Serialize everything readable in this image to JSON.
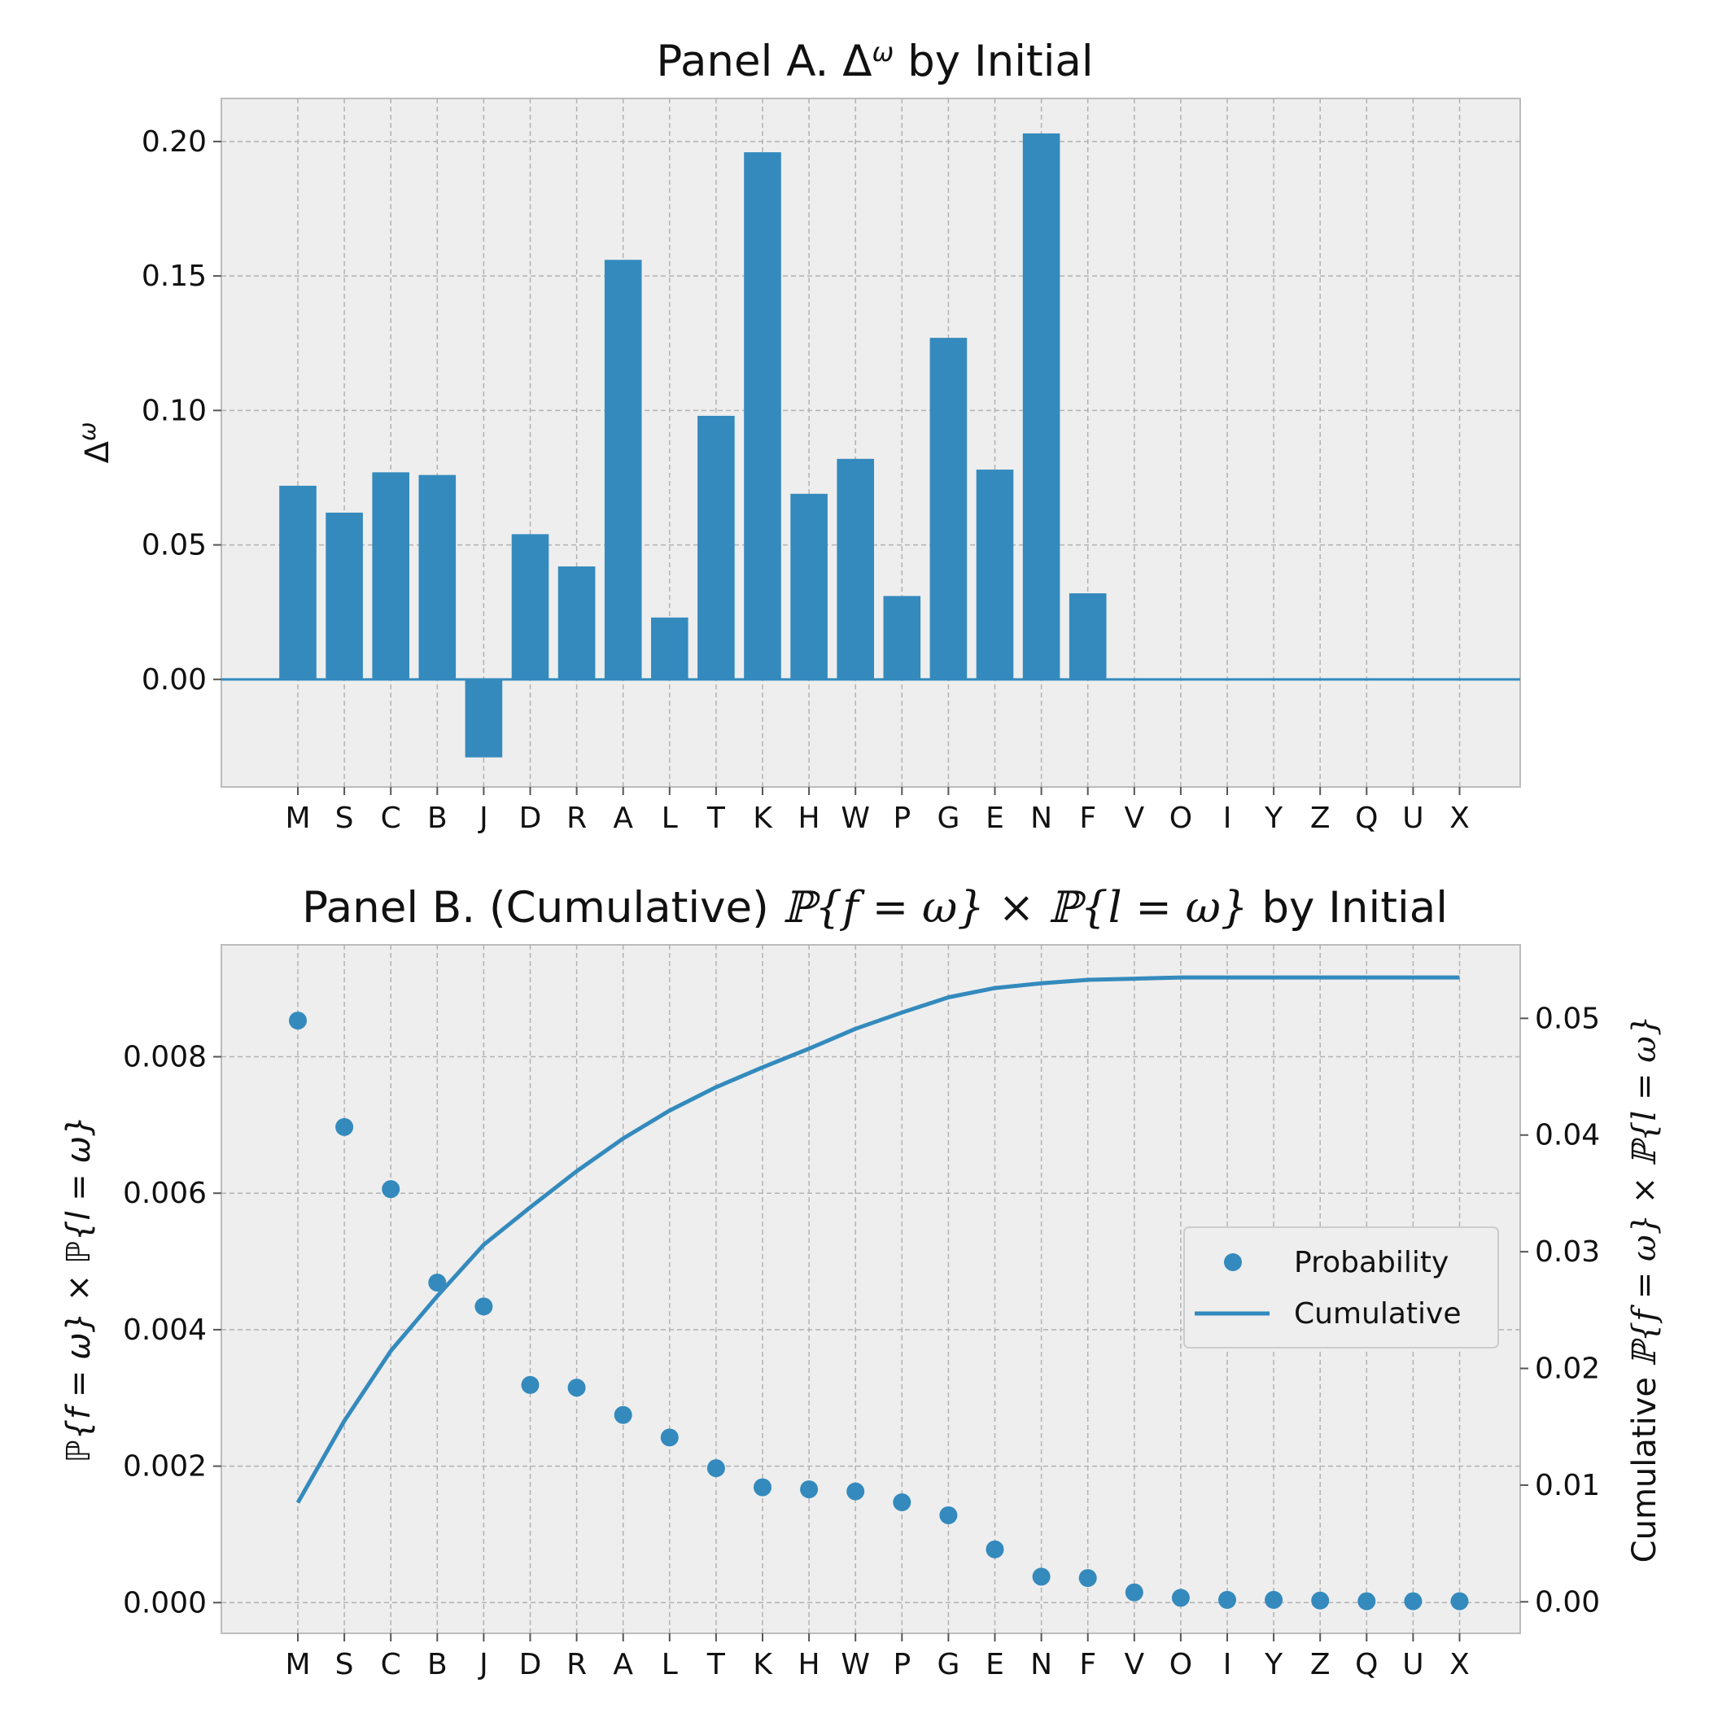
{
  "chart_data": [
    {
      "type": "bar",
      "title_parts": [
        "Panel A. ",
        "Δ",
        "ω",
        " by Initial"
      ],
      "ylabel_parts": [
        "Δ",
        "ω"
      ],
      "xlabel": "",
      "categories": [
        "M",
        "S",
        "C",
        "B",
        "J",
        "D",
        "R",
        "A",
        "L",
        "T",
        "K",
        "H",
        "W",
        "P",
        "G",
        "E",
        "N",
        "F",
        "V",
        "O",
        "I",
        "Y",
        "Z",
        "Q",
        "U",
        "X"
      ],
      "values": [
        0.072,
        0.062,
        0.077,
        0.076,
        -0.029,
        0.054,
        0.042,
        0.156,
        0.023,
        0.098,
        0.196,
        0.069,
        0.082,
        0.031,
        0.127,
        0.078,
        0.203,
        0.032,
        0,
        0,
        0,
        0,
        0,
        0,
        0,
        0
      ],
      "ylim": [
        -0.04,
        0.216
      ],
      "yticks": [
        "0.00",
        "0.05",
        "0.10",
        "0.15",
        "0.20"
      ],
      "ytick_values": [
        0,
        0.05,
        0.1,
        0.15,
        0.2
      ],
      "grid": true,
      "color": "#348abd"
    },
    {
      "type": "scatter",
      "title_parts": [
        "Panel B. (Cumulative) ",
        "ℙ{f = ω} × ℙ{l = ω}",
        " by Initial"
      ],
      "ylabel_left": "ℙ{f = ω} × ℙ{l = ω}",
      "ylabel_right_parts": [
        "Cumulative ",
        "ℙ{f = ω} × ℙ{l = ω}"
      ],
      "categories": [
        "M",
        "S",
        "C",
        "B",
        "J",
        "D",
        "R",
        "A",
        "L",
        "T",
        "K",
        "H",
        "W",
        "P",
        "G",
        "E",
        "N",
        "F",
        "V",
        "O",
        "I",
        "Y",
        "Z",
        "Q",
        "U",
        "X"
      ],
      "series": [
        {
          "name": "Probability",
          "type": "scatter",
          "axis": "left",
          "values": [
            0.00853,
            0.00697,
            0.00606,
            0.00469,
            0.00434,
            0.00319,
            0.00315,
            0.00275,
            0.00242,
            0.00197,
            0.00169,
            0.00166,
            0.00163,
            0.00147,
            0.00128,
            0.00078,
            0.00038,
            0.00036,
            0.00015,
            7e-05,
            4e-05,
            4e-05,
            3e-05,
            2e-05,
            2e-05,
            2e-05
          ]
        },
        {
          "name": "Cumulative",
          "type": "line",
          "axis": "right",
          "values": [
            0.0085,
            0.0155,
            0.0215,
            0.0262,
            0.0306,
            0.0338,
            0.0369,
            0.0397,
            0.0421,
            0.0441,
            0.0458,
            0.0474,
            0.0491,
            0.0505,
            0.0518,
            0.0526,
            0.053,
            0.0533,
            0.0534,
            0.0535,
            0.0535,
            0.0535,
            0.0535,
            0.0535,
            0.0535,
            0.0535
          ]
        }
      ],
      "ylim_left": [
        -0.00045,
        0.00964
      ],
      "yticks_left": [
        "0.000",
        "0.002",
        "0.004",
        "0.006",
        "0.008"
      ],
      "ytick_values_left": [
        0,
        0.002,
        0.004,
        0.006,
        0.008
      ],
      "ylim_right": [
        -0.0027,
        0.0563
      ],
      "yticks_right": [
        "0.00",
        "0.01",
        "0.02",
        "0.03",
        "0.04",
        "0.05"
      ],
      "ytick_values_right": [
        0,
        0.01,
        0.02,
        0.03,
        0.04,
        0.05
      ],
      "legend_position": "center-right",
      "grid": true,
      "color": "#348abd"
    }
  ]
}
